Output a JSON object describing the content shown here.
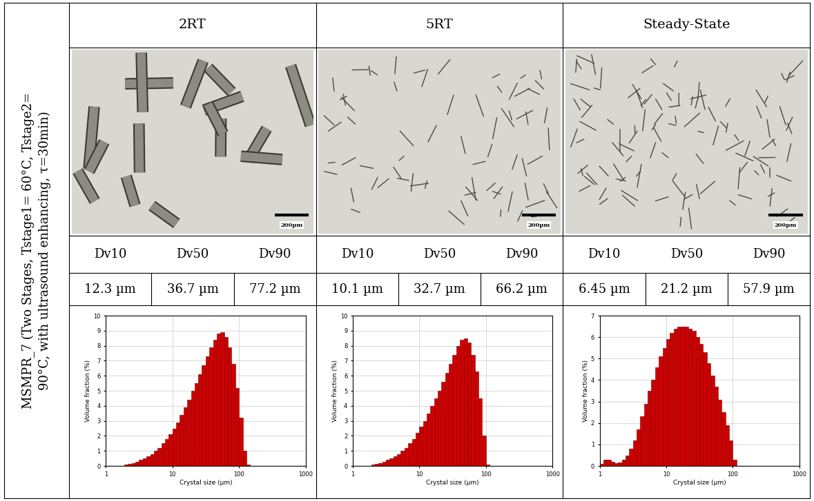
{
  "row_label": [
    "MSMPR_7 (Two Stages, Tstage1= 60°C, Tstage2=",
    "90°C, with ultrasound enhancing, τ=30min)"
  ],
  "panels": [
    {
      "title": "2RT",
      "scale_bar": "200µm",
      "dv": {
        "headers": [
          "Dv10",
          "Dv50",
          "Dv90"
        ],
        "values": [
          "12.3 µm",
          "36.7 µm",
          "77.2 µm"
        ]
      }
    },
    {
      "title": "5RT",
      "scale_bar": "200µm",
      "dv": {
        "headers": [
          "Dv10",
          "Dv50",
          "Dv90"
        ],
        "values": [
          "10.1 µm",
          "32.7 µm",
          "66.2 µm"
        ]
      }
    },
    {
      "title": "Steady-State",
      "scale_bar": "200µm",
      "dv": {
        "headers": [
          "Dv10",
          "Dv50",
          "Dv90"
        ],
        "values": [
          "6.45 µm",
          "21.2 µm",
          "57.9 µm"
        ]
      }
    }
  ],
  "chart_data": [
    {
      "type": "histogram",
      "xlabel": "Crystal size (µm)",
      "ylabel": "Volume fraction (%)",
      "color": "#cc0000",
      "log": "x",
      "grid": true,
      "bins": [
        1,
        1.14,
        1.29,
        1.47,
        1.67,
        1.9,
        2.15,
        2.45,
        2.78,
        3.16,
        3.59,
        4.08,
        4.64,
        5.27,
        5.99,
        6.81,
        7.74,
        8.8,
        10,
        11.4,
        12.9,
        14.7,
        16.7,
        19,
        21.5,
        24.5,
        27.8,
        31.6,
        35.9,
        40.8,
        46.4,
        52.7,
        59.9,
        68.1,
        77.4,
        88,
        100,
        114,
        129,
        147,
        167,
        190,
        215
      ],
      "counts": [
        0,
        0,
        0,
        0,
        0,
        0.1,
        0.15,
        0.2,
        0.3,
        0.4,
        0.5,
        0.65,
        0.8,
        1.0,
        1.2,
        1.5,
        1.8,
        2.1,
        2.5,
        2.9,
        3.4,
        3.9,
        4.4,
        5.0,
        5.5,
        6.1,
        6.7,
        7.3,
        7.9,
        8.4,
        8.8,
        8.9,
        8.6,
        7.9,
        6.8,
        5.2,
        3.2,
        1.0,
        0.1,
        0,
        0,
        0
      ],
      "xlim": [
        1,
        1000
      ],
      "xticks": [
        1,
        10,
        100,
        1000
      ],
      "ylim": [
        0,
        10
      ],
      "yticks": [
        0,
        1,
        2,
        3,
        4,
        5,
        6,
        7,
        8,
        9,
        10
      ]
    },
    {
      "type": "histogram",
      "xlabel": "Crystal size (µm)",
      "ylabel": "Volume fraction (%)",
      "color": "#cc0000",
      "log": "x",
      "grid": true,
      "bins": [
        1,
        1.14,
        1.29,
        1.47,
        1.67,
        1.9,
        2.15,
        2.45,
        2.78,
        3.16,
        3.59,
        4.08,
        4.64,
        5.27,
        5.99,
        6.81,
        7.74,
        8.8,
        10,
        11.4,
        12.9,
        14.7,
        16.7,
        19,
        21.5,
        24.5,
        27.8,
        31.6,
        35.9,
        40.8,
        46.4,
        52.7,
        59.9,
        68.1,
        77.4,
        88,
        100,
        114,
        129,
        147,
        167,
        190,
        215
      ],
      "counts": [
        0,
        0,
        0,
        0,
        0,
        0.1,
        0.15,
        0.2,
        0.3,
        0.4,
        0.5,
        0.65,
        0.8,
        1.0,
        1.2,
        1.5,
        1.8,
        2.2,
        2.6,
        3.0,
        3.5,
        4.0,
        4.5,
        5.0,
        5.6,
        6.2,
        6.8,
        7.4,
        8.0,
        8.4,
        8.5,
        8.2,
        7.4,
        6.3,
        4.5,
        2.0,
        0.1,
        0,
        0,
        0,
        0,
        0
      ],
      "xlim": [
        1,
        1000
      ],
      "xticks": [
        1,
        10,
        100,
        1000
      ],
      "ylim": [
        0,
        10
      ],
      "yticks": [
        0,
        1,
        2,
        3,
        4,
        5,
        6,
        7,
        8,
        9,
        10
      ]
    },
    {
      "type": "histogram",
      "xlabel": "Crystal size (µm)",
      "ylabel": "Volume fraction (%)",
      "color": "#cc0000",
      "log": "x",
      "grid": true,
      "bins": [
        1,
        1.14,
        1.29,
        1.47,
        1.67,
        1.9,
        2.15,
        2.45,
        2.78,
        3.16,
        3.59,
        4.08,
        4.64,
        5.27,
        5.99,
        6.81,
        7.74,
        8.8,
        10,
        11.4,
        12.9,
        14.7,
        16.7,
        19,
        21.5,
        24.5,
        27.8,
        31.6,
        35.9,
        40.8,
        46.4,
        52.7,
        59.9,
        68.1,
        77.4,
        88,
        100,
        114,
        129,
        147,
        167,
        190,
        215
      ],
      "counts": [
        0.1,
        0.28,
        0.3,
        0.2,
        0.12,
        0.15,
        0.3,
        0.5,
        0.8,
        1.2,
        1.7,
        2.3,
        2.9,
        3.5,
        4.0,
        4.6,
        5.1,
        5.5,
        5.9,
        6.2,
        6.4,
        6.5,
        6.5,
        6.5,
        6.4,
        6.3,
        6.0,
        5.7,
        5.3,
        4.8,
        4.2,
        3.7,
        3.1,
        2.5,
        1.9,
        1.2,
        0.3,
        0,
        0,
        0,
        0,
        0
      ],
      "xlim": [
        1,
        1000
      ],
      "xticks": [
        1,
        10,
        100,
        1000
      ],
      "ylim": [
        0,
        7
      ],
      "yticks": [
        0,
        1,
        2,
        3,
        4,
        5,
        6,
        7
      ]
    }
  ]
}
